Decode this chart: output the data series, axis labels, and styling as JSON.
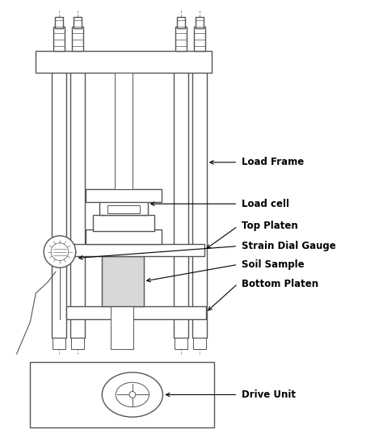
{
  "bg_color": "#ffffff",
  "lc": "#555555",
  "fill_light": "#d8d8d8",
  "labels": {
    "load_frame": "Load Frame",
    "load_cell": "Load cell",
    "top_platen": "Top Platen",
    "strain_dial": "Strain Dial Gauge",
    "soil_sample": "Soil Sample",
    "bottom_platen": "Bottom Platen",
    "drive_unit": "Drive Unit"
  },
  "figsize": [
    4.74,
    5.47
  ],
  "dpi": 100
}
